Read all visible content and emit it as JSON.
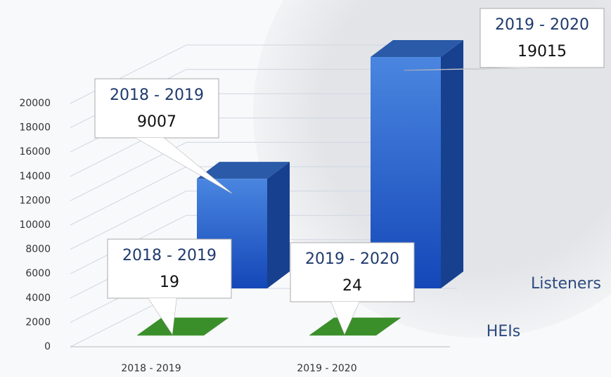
{
  "chart_data": {
    "type": "bar3d",
    "categories": [
      "2018 - 2019",
      "2019 - 2020"
    ],
    "series": [
      {
        "name": "Listeners",
        "color": "#2f6fd0",
        "values": [
          9007,
          19015
        ]
      },
      {
        "name": "HEIs",
        "color": "#3a8f2a",
        "values": [
          19,
          24
        ]
      }
    ],
    "ylim": [
      0,
      20000
    ],
    "yticks": [
      0,
      2000,
      4000,
      6000,
      8000,
      10000,
      12000,
      14000,
      16000,
      18000,
      20000
    ],
    "grid": true
  }
}
